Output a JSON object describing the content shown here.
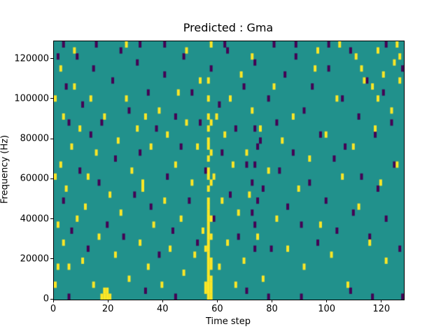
{
  "chart_data": {
    "type": "heatmap",
    "title": "Predicted : Gma",
    "xlabel": "Time step",
    "ylabel": "Frequency (Hz)",
    "x_range": [
      0,
      128
    ],
    "y_range": [
      0,
      129000
    ],
    "n_cols": 128,
    "n_rows": 43,
    "x_ticks": [
      0,
      20,
      40,
      60,
      80,
      100,
      120
    ],
    "y_ticks": [
      0,
      20000,
      40000,
      60000,
      80000,
      100000,
      120000
    ],
    "legend": "none",
    "grid": "off",
    "colors": {
      "background_mid": "#21918c",
      "high": "#fde725",
      "low": "#440154",
      "figure_bg": "#ffffff",
      "text": "#000000"
    },
    "cells_high": [
      [
        55,
        1
      ],
      [
        55,
        2
      ],
      [
        55,
        8
      ],
      [
        56,
        0
      ],
      [
        56,
        1
      ],
      [
        56,
        2
      ],
      [
        56,
        3
      ],
      [
        56,
        4
      ],
      [
        56,
        5
      ],
      [
        56,
        6
      ],
      [
        56,
        7
      ],
      [
        56,
        8
      ],
      [
        56,
        9
      ],
      [
        56,
        10
      ],
      [
        56,
        11
      ],
      [
        56,
        12
      ],
      [
        56,
        13
      ],
      [
        56,
        14
      ],
      [
        56,
        15
      ],
      [
        56,
        16
      ],
      [
        56,
        18
      ],
      [
        56,
        20
      ],
      [
        56,
        21
      ],
      [
        56,
        23
      ],
      [
        56,
        25
      ],
      [
        56,
        26
      ],
      [
        56,
        28
      ],
      [
        56,
        30
      ],
      [
        56,
        33
      ],
      [
        56,
        36
      ],
      [
        57,
        0
      ],
      [
        57,
        1
      ],
      [
        57,
        2
      ],
      [
        57,
        3
      ],
      [
        57,
        5
      ],
      [
        57,
        6
      ],
      [
        57,
        10
      ],
      [
        57,
        13
      ],
      [
        57,
        19
      ],
      [
        57,
        24
      ],
      [
        57,
        29
      ],
      [
        17,
        0
      ],
      [
        18,
        0
      ],
      [
        19,
        0
      ],
      [
        20,
        0
      ],
      [
        18,
        1
      ],
      [
        19,
        1
      ],
      [
        0,
        2
      ],
      [
        0,
        20
      ],
      [
        0,
        33
      ],
      [
        1,
        5
      ],
      [
        1,
        12
      ],
      [
        2,
        22
      ],
      [
        2,
        38
      ],
      [
        3,
        9
      ],
      [
        3,
        30
      ],
      [
        4,
        18
      ],
      [
        5,
        5
      ],
      [
        6,
        25
      ],
      [
        7,
        35
      ],
      [
        8,
        13
      ],
      [
        9,
        28
      ],
      [
        10,
        6
      ],
      [
        11,
        15
      ],
      [
        12,
        20
      ],
      [
        13,
        33
      ],
      [
        14,
        2
      ],
      [
        15,
        24
      ],
      [
        16,
        10
      ],
      [
        18,
        30
      ],
      [
        20,
        17
      ],
      [
        22,
        7
      ],
      [
        23,
        26
      ],
      [
        24,
        14
      ],
      [
        26,
        33
      ],
      [
        27,
        3
      ],
      [
        28,
        21
      ],
      [
        30,
        28
      ],
      [
        31,
        9
      ],
      [
        32,
        18
      ],
      [
        32,
        19
      ],
      [
        33,
        30
      ],
      [
        34,
        5
      ],
      [
        35,
        25
      ],
      [
        36,
        12
      ],
      [
        38,
        31
      ],
      [
        39,
        2
      ],
      [
        40,
        16
      ],
      [
        41,
        27
      ],
      [
        42,
        8
      ],
      [
        44,
        22
      ],
      [
        45,
        34
      ],
      [
        46,
        13
      ],
      [
        47,
        4
      ],
      [
        48,
        29
      ],
      [
        50,
        19
      ],
      [
        51,
        7
      ],
      [
        52,
        25
      ],
      [
        53,
        36
      ],
      [
        54,
        11
      ],
      [
        58,
        20
      ],
      [
        59,
        30
      ],
      [
        60,
        5
      ],
      [
        61,
        16
      ],
      [
        62,
        27
      ],
      [
        63,
        9
      ],
      [
        64,
        33
      ],
      [
        65,
        22
      ],
      [
        66,
        2
      ],
      [
        67,
        14
      ],
      [
        68,
        37
      ],
      [
        69,
        6
      ],
      [
        70,
        24
      ],
      [
        71,
        17
      ],
      [
        72,
        31
      ],
      [
        74,
        10
      ],
      [
        75,
        28
      ],
      [
        76,
        3
      ],
      [
        78,
        21
      ],
      [
        80,
        35
      ],
      [
        81,
        13
      ],
      [
        83,
        26
      ],
      [
        85,
        8
      ],
      [
        87,
        30
      ],
      [
        89,
        18
      ],
      [
        91,
        5
      ],
      [
        93,
        23
      ],
      [
        95,
        38
      ],
      [
        97,
        12
      ],
      [
        99,
        27
      ],
      [
        101,
        7
      ],
      [
        103,
        33
      ],
      [
        105,
        20
      ],
      [
        107,
        2
      ],
      [
        109,
        25
      ],
      [
        111,
        15
      ],
      [
        113,
        36
      ],
      [
        115,
        9
      ],
      [
        117,
        28
      ],
      [
        119,
        19
      ],
      [
        121,
        6
      ],
      [
        123,
        31
      ],
      [
        125,
        22
      ],
      [
        126,
        40
      ],
      [
        7,
        41
      ],
      [
        26,
        42
      ],
      [
        48,
        41
      ],
      [
        57,
        42
      ],
      [
        72,
        40
      ],
      [
        96,
        41
      ],
      [
        104,
        42
      ],
      [
        110,
        40
      ],
      [
        118,
        41
      ],
      [
        125,
        42
      ],
      [
        112,
        38
      ],
      [
        116,
        35
      ],
      [
        120,
        37
      ],
      [
        124,
        39
      ],
      [
        126,
        36
      ],
      [
        118,
        33
      ]
    ],
    "cells_low": [
      [
        1,
        40
      ],
      [
        3,
        16
      ],
      [
        4,
        35
      ],
      [
        5,
        29
      ],
      [
        6,
        11
      ],
      [
        8,
        40
      ],
      [
        9,
        21
      ],
      [
        10,
        32
      ],
      [
        12,
        8
      ],
      [
        13,
        27
      ],
      [
        14,
        38
      ],
      [
        16,
        19
      ],
      [
        17,
        29
      ],
      [
        19,
        12
      ],
      [
        21,
        36
      ],
      [
        22,
        23
      ],
      [
        24,
        41
      ],
      [
        25,
        10
      ],
      [
        27,
        31
      ],
      [
        29,
        17
      ],
      [
        30,
        39
      ],
      [
        31,
        24
      ],
      [
        34,
        34
      ],
      [
        35,
        15
      ],
      [
        37,
        28
      ],
      [
        38,
        7
      ],
      [
        40,
        37
      ],
      [
        41,
        20
      ],
      [
        43,
        11
      ],
      [
        44,
        30
      ],
      [
        46,
        25
      ],
      [
        47,
        40
      ],
      [
        49,
        16
      ],
      [
        50,
        34
      ],
      [
        52,
        9
      ],
      [
        53,
        29
      ],
      [
        55,
        21
      ],
      [
        57,
        38
      ],
      [
        58,
        13
      ],
      [
        60,
        32
      ],
      [
        61,
        24
      ],
      [
        63,
        41
      ],
      [
        64,
        17
      ],
      [
        66,
        28
      ],
      [
        67,
        10
      ],
      [
        69,
        35
      ],
      [
        70,
        22
      ],
      [
        72,
        14
      ],
      [
        72,
        19
      ],
      [
        73,
        8
      ],
      [
        73,
        12
      ],
      [
        73,
        22
      ],
      [
        73,
        28
      ],
      [
        73,
        39
      ],
      [
        74,
        16
      ],
      [
        74,
        25
      ],
      [
        75,
        26
      ],
      [
        76,
        18
      ],
      [
        78,
        33
      ],
      [
        79,
        8
      ],
      [
        81,
        29
      ],
      [
        82,
        21
      ],
      [
        84,
        37
      ],
      [
        85,
        15
      ],
      [
        87,
        24
      ],
      [
        88,
        40
      ],
      [
        90,
        12
      ],
      [
        91,
        31
      ],
      [
        93,
        19
      ],
      [
        94,
        35
      ],
      [
        96,
        9
      ],
      [
        97,
        27
      ],
      [
        99,
        16
      ],
      [
        100,
        38
      ],
      [
        102,
        23
      ],
      [
        103,
        11
      ],
      [
        105,
        33
      ],
      [
        106,
        25
      ],
      [
        108,
        41
      ],
      [
        109,
        14
      ],
      [
        111,
        30
      ],
      [
        112,
        20
      ],
      [
        114,
        36
      ],
      [
        115,
        10
      ],
      [
        117,
        27
      ],
      [
        118,
        18
      ],
      [
        120,
        34
      ],
      [
        121,
        13
      ],
      [
        123,
        29
      ],
      [
        124,
        22
      ],
      [
        126,
        8
      ],
      [
        127,
        38
      ],
      [
        5,
        0
      ],
      [
        33,
        1
      ],
      [
        44,
        0
      ],
      [
        70,
        1
      ],
      [
        78,
        0
      ],
      [
        90,
        0
      ],
      [
        108,
        1
      ],
      [
        116,
        0
      ],
      [
        127,
        0
      ],
      [
        3,
        42
      ],
      [
        15,
        42
      ],
      [
        31,
        42
      ],
      [
        40,
        42
      ],
      [
        62,
        42
      ],
      [
        80,
        42
      ],
      [
        88,
        42
      ],
      [
        100,
        42
      ],
      [
        121,
        42
      ]
    ]
  }
}
